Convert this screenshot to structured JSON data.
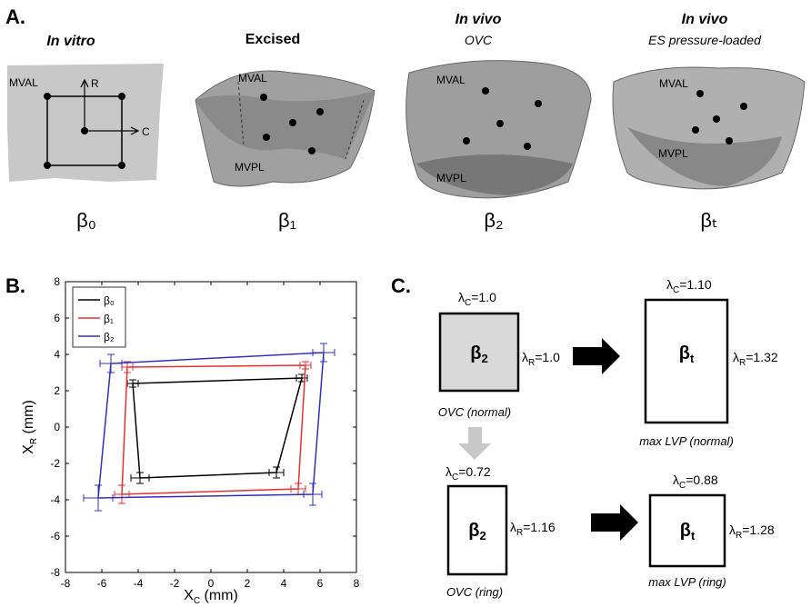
{
  "panel_a": {
    "label": "A.",
    "in_vitro": {
      "title": "In vitro",
      "mval": "MVAL",
      "axis_r": "R",
      "axis_c": "C",
      "beta": "β₀"
    },
    "excised": {
      "title": "Excised",
      "mval": "MVAL",
      "mvpl": "MVPL",
      "beta": "β₁"
    },
    "ovc": {
      "title": "In vivo",
      "subtitle": "OVC",
      "mval": "MVAL",
      "mvpl": "MVPL",
      "beta": "β₂"
    },
    "es": {
      "title": "In vivo",
      "subtitle": "ES pressure-loaded",
      "mval": "MVAL",
      "mvpl": "MVPL",
      "beta": "βₜ"
    }
  },
  "chart_data": {
    "type": "line",
    "panel_label": "B.",
    "xlabel": {
      "symbol": "X",
      "sub": "C",
      "unit": " (mm)"
    },
    "ylabel": {
      "symbol": "X",
      "sub": "R",
      "unit": " (mm)"
    },
    "xlim": [
      -8,
      8
    ],
    "ylim": [
      -8,
      8
    ],
    "xticks": [
      -8,
      -6,
      -4,
      -2,
      0,
      2,
      4,
      6,
      8
    ],
    "yticks": [
      -8,
      -6,
      -4,
      -2,
      0,
      2,
      4,
      6,
      8
    ],
    "legend": "upper left",
    "series": [
      {
        "name": "β₀",
        "color": "#000000",
        "x": [
          -4.3,
          5.0,
          3.6,
          -3.9
        ],
        "values": [
          2.4,
          2.7,
          -2.5,
          -2.8
        ],
        "x_err": [
          0.3,
          0.3,
          0.4,
          0.5
        ],
        "y_err": [
          0.2,
          0.2,
          0.3,
          0.3
        ]
      },
      {
        "name": "β₁",
        "color": "#e8302f",
        "x": [
          -4.6,
          5.2,
          4.8,
          -4.9
        ],
        "values": [
          3.3,
          3.4,
          -3.4,
          -3.7
        ],
        "x_err": [
          0.3,
          0.3,
          0.4,
          0.4
        ],
        "y_err": [
          0.3,
          0.2,
          0.3,
          0.5
        ]
      },
      {
        "name": "β₂",
        "color": "#3030c0",
        "x": [
          -5.5,
          6.2,
          5.6,
          -6.2
        ],
        "values": [
          3.5,
          4.1,
          -3.7,
          -3.9
        ],
        "x_err": [
          0.6,
          0.6,
          0.5,
          0.8
        ],
        "y_err": [
          0.5,
          0.5,
          0.6,
          0.7
        ]
      }
    ]
  },
  "panel_c": {
    "label": "C.",
    "boxes": [
      {
        "beta": {
          "symbol": "β",
          "sub": "2"
        },
        "lc": {
          "symbol": "λ",
          "sub": "C",
          "value": "=1.0"
        },
        "lr": {
          "symbol": "λ",
          "sub": "R",
          "value": "=1.0"
        },
        "caption": "OVC (normal)"
      },
      {
        "beta": {
          "symbol": "β",
          "sub": "t"
        },
        "lc": {
          "symbol": "λ",
          "sub": "C",
          "value": "=1.10"
        },
        "lr": {
          "symbol": "λ",
          "sub": "R",
          "value": "=1.32"
        },
        "caption": "max LVP (normal)"
      },
      {
        "beta": {
          "symbol": "β",
          "sub": "2"
        },
        "lc": {
          "symbol": "λ",
          "sub": "C",
          "value": "=0.72"
        },
        "lr": {
          "symbol": "λ",
          "sub": "R",
          "value": "=1.16"
        },
        "caption": "OVC (ring)"
      },
      {
        "beta": {
          "symbol": "β",
          "sub": "t"
        },
        "lc": {
          "symbol": "λ",
          "sub": "C",
          "value": "=0.88"
        },
        "lr": {
          "symbol": "λ",
          "sub": "R",
          "value": "=1.28"
        },
        "caption": "max LVP (ring)"
      }
    ]
  }
}
